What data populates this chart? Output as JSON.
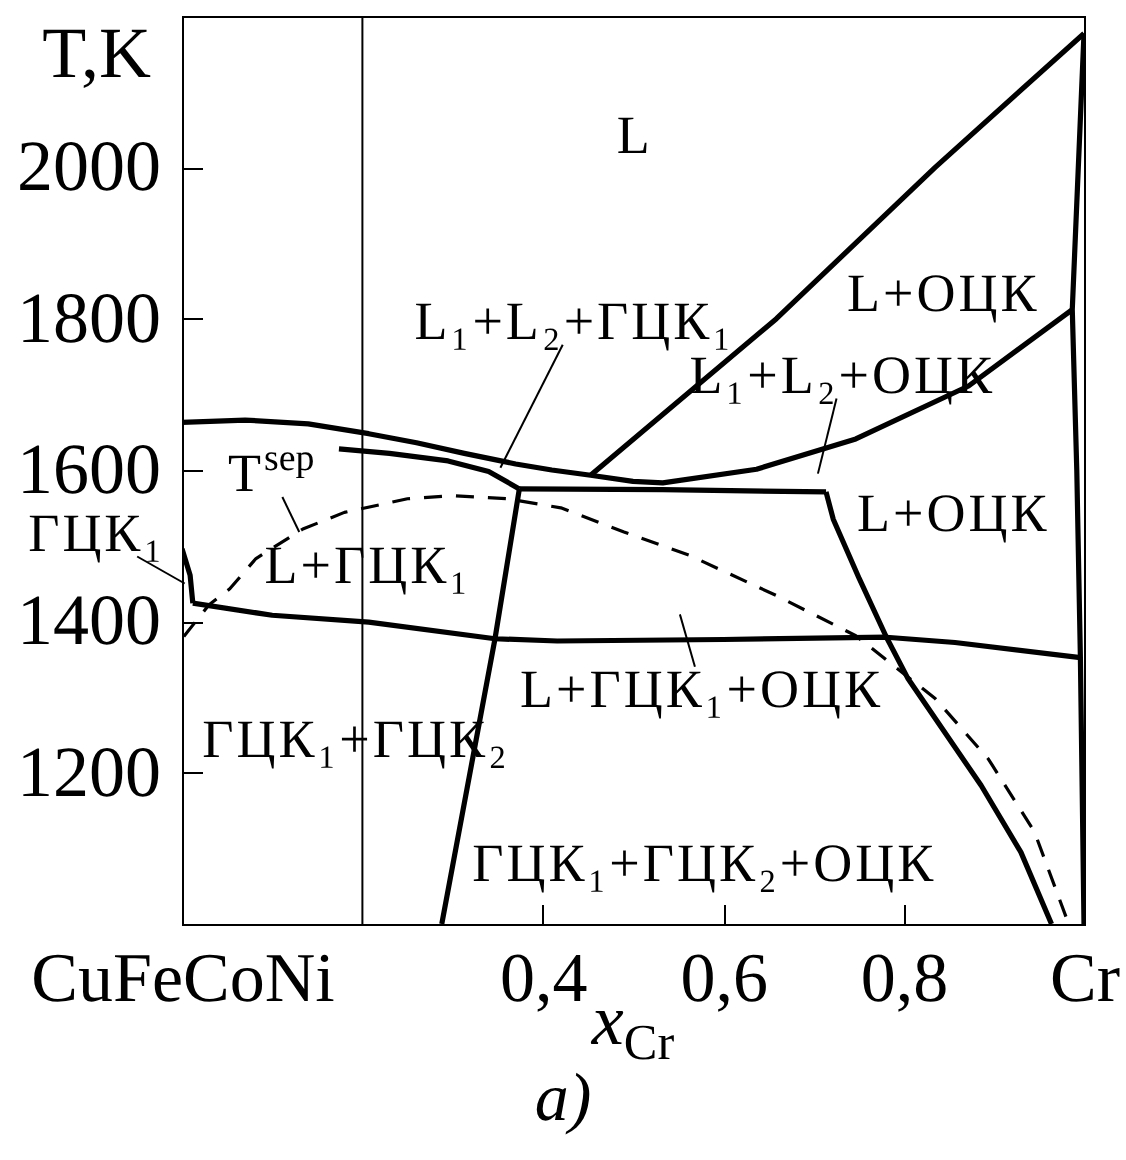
{
  "chart_data": {
    "type": "line",
    "xlabel": "x$_{Cr}$",
    "ylabel": "T,K",
    "xlim": [
      0,
      1
    ],
    "ylim": [
      1000,
      2200
    ],
    "xticks": [
      {
        "value": 0,
        "label": "CuFeCoNi"
      },
      {
        "value": 0.4,
        "label": "0,4"
      },
      {
        "value": 0.6,
        "label": "0,6"
      },
      {
        "value": 0.8,
        "label": "0,8"
      },
      {
        "value": 1,
        "label": "Cr"
      }
    ],
    "yticks": [
      1200,
      1400,
      1600,
      1800,
      2000
    ],
    "grid": false,
    "line_style": "solid",
    "series": [
      {
        "color": "#000000",
        "x": [
          0,
          0.07,
          0.14,
          0.207,
          0.26,
          0.313,
          0.37,
          0.41,
          0.453,
          0.5,
          0.533,
          0.637,
          0.747,
          0.872,
          0.987
        ],
        "values": [
          1663,
          1666,
          1661,
          1648,
          1636,
          1622,
          1608,
          1600,
          1593,
          1585,
          1583,
          1601,
          1641,
          1711,
          1812
        ]
      },
      {
        "color": "#000000",
        "x": [
          0.174,
          0.23,
          0.295,
          0.34,
          0.374
        ],
        "values": [
          1628,
          1622,
          1612,
          1598,
          1575
        ]
      },
      {
        "color": "#000000",
        "x": [
          0.453,
          0.659,
          0.835,
          1
        ],
        "values": [
          1593,
          1800,
          2000,
          2177
        ]
      },
      {
        "color": "#000000",
        "x": [
          1,
          0.987,
          0.992,
          0.996,
          1
        ],
        "values": [
          2177,
          1812,
          1600,
          1352,
          1000
        ]
      },
      {
        "color": "#000000",
        "x": [
          0.374,
          0.533,
          0.714
        ],
        "values": [
          1575,
          1574,
          1571
        ]
      },
      {
        "color": "#000000",
        "x": [
          0.714,
          0.722,
          0.751,
          0.781,
          0.805,
          0.886,
          0.93,
          0.964
        ],
        "values": [
          1571,
          1535,
          1456,
          1379,
          1324,
          1183,
          1095,
          1000
        ]
      },
      {
        "color": "#000000",
        "x": [
          0.012,
          0.1,
          0.207,
          0.347,
          0.416,
          0.6,
          0.781,
          0.857,
          0.996
        ],
        "values": [
          1424,
          1408,
          1399,
          1377,
          1374,
          1376,
          1379,
          1372,
          1352
        ]
      },
      {
        "color": "#000000",
        "x": [
          0.374,
          0.347,
          0.288
        ],
        "values": [
          1575,
          1377,
          1000
        ]
      },
      {
        "color": "#000000",
        "x": [
          0,
          0.009,
          0.012
        ],
        "values": [
          1496,
          1461,
          1424
        ]
      },
      {
        "color": "#000000",
        "line_style": "dashed",
        "x": [
          0.002,
          0.03,
          0.053,
          0.082,
          0.134,
          0.18,
          0.25,
          0.3,
          0.36,
          0.42,
          0.49,
          0.563,
          0.659,
          0.747,
          0.835,
          0.894,
          0.945,
          0.983
        ],
        "values": [
          1380,
          1422,
          1443,
          1483,
          1522,
          1544,
          1562,
          1566,
          1562,
          1550,
          1518,
          1487,
          1434,
          1381,
          1298,
          1218,
          1122,
          1000
        ]
      }
    ],
    "ref_lines": [
      {
        "axis": "x",
        "value": 0.2,
        "color": "#000000"
      }
    ],
    "annotations": [
      "L",
      {
        "text": "L₁+L₂+ГЦК₁",
        "x": 0.353,
        "y": 1603
      },
      "L+ОЦК",
      "L₁+L₂+ОЦК",
      "L+ОЦК",
      {
        "text": "T$^{sep}$",
        "x": 0.13,
        "y": 1518
      },
      {
        "text": "ГЦК₁",
        "x": 0.003,
        "y": 1450
      },
      "L+ГЦК₁",
      "L+ГЦК₁+ОЦК",
      "ГЦК₁+ГЦК₂",
      "ГЦК₁+ГЦК₂+ОЦК",
      "a)"
    ]
  }
}
